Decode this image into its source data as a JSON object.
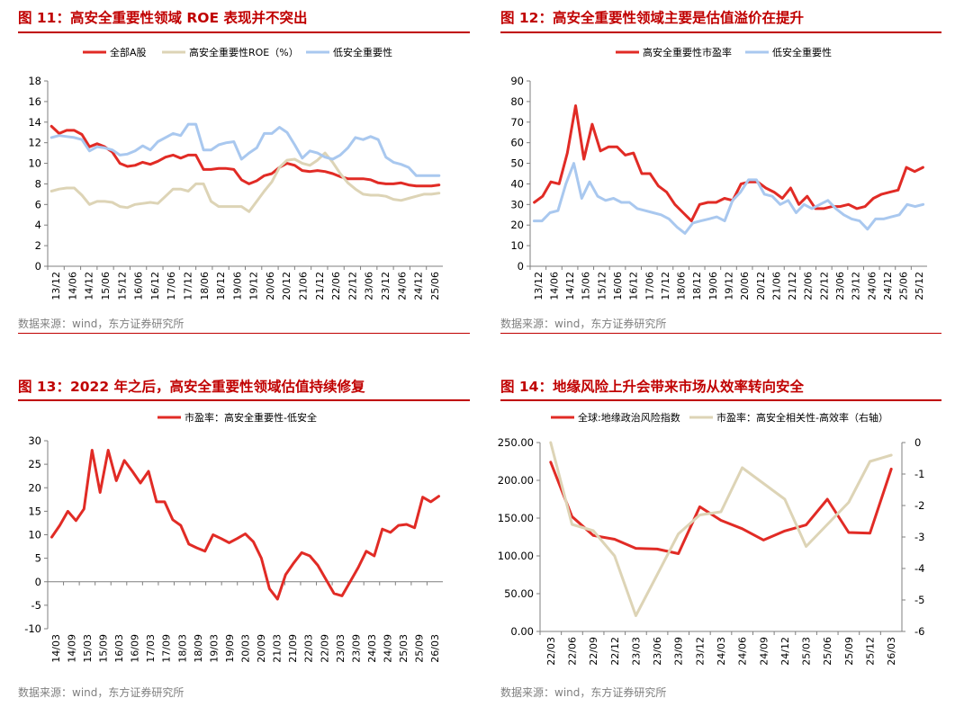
{
  "colors": {
    "red": "#e12b25",
    "beige": "#ddd4b6",
    "blue": "#a9c8ef",
    "title": "#c00000",
    "source": "#7f7f7f"
  },
  "panels": [
    {
      "title": "图 11：高安全重要性领域 ROE 表现并不突出",
      "source": "数据来源：wind，东方证券研究所",
      "chart_data": {
        "type": "line",
        "title": "",
        "xlabel": "",
        "ylabel": "",
        "ylim": [
          0,
          18
        ],
        "yticks": [
          0,
          2,
          4,
          6,
          8,
          10,
          12,
          14,
          16,
          18
        ],
        "ytick_labels": [
          "0",
          "2",
          "4",
          "6",
          "8",
          "10",
          "12",
          "14",
          "16",
          "18"
        ],
        "xticks": [
          "13/12",
          "14/06",
          "14/12",
          "15/06",
          "15/12",
          "16/06",
          "16/12",
          "17/06",
          "17/12",
          "18/06",
          "18/12",
          "19/06",
          "19/12",
          "20/06",
          "20/12",
          "21/06",
          "21/12",
          "22/06",
          "22/12",
          "23/06",
          "23/12",
          "24/06",
          "24/12",
          "25/06"
        ],
        "legend_position": "top",
        "series": [
          {
            "name": "全部A股",
            "color": "red",
            "values": [
              13.6,
              12.9,
              13.2,
              13.2,
              12.8,
              11.6,
              11.9,
              11.6,
              11.1,
              10.0,
              9.7,
              9.8,
              10.1,
              9.9,
              10.2,
              10.6,
              10.8,
              10.5,
              10.8,
              10.8,
              9.4,
              9.4,
              9.5,
              9.5,
              9.4,
              8.4,
              8.0,
              8.3,
              8.8,
              9.0,
              9.6,
              10.0,
              9.8,
              9.3,
              9.2,
              9.3,
              9.2,
              9.0,
              8.7,
              8.5,
              8.5,
              8.5,
              8.4,
              8.1,
              8.0,
              8.0,
              8.1,
              7.9,
              7.8,
              7.8,
              7.8,
              7.9
            ]
          },
          {
            "name": "高安全重要性ROE（%）",
            "color": "beige",
            "values": [
              7.3,
              7.5,
              7.6,
              7.6,
              6.9,
              6.0,
              6.3,
              6.3,
              6.2,
              5.8,
              5.7,
              6.0,
              6.1,
              6.2,
              6.1,
              6.8,
              7.5,
              7.5,
              7.3,
              8.0,
              8.0,
              6.3,
              5.8,
              5.8,
              5.8,
              5.8,
              5.3,
              6.3,
              7.3,
              8.2,
              9.6,
              10.3,
              10.4,
              10.0,
              9.8,
              10.3,
              11.0,
              10.1,
              9.0,
              8.1,
              7.5,
              7.0,
              6.9,
              6.9,
              6.8,
              6.5,
              6.4,
              6.6,
              6.8,
              7.0,
              7.0,
              7.1
            ]
          },
          {
            "name": "低安全重要性",
            "color": "blue",
            "values": [
              12.5,
              12.7,
              12.6,
              12.5,
              12.3,
              11.2,
              11.6,
              11.5,
              11.3,
              10.8,
              10.9,
              11.2,
              11.7,
              11.3,
              12.1,
              12.5,
              12.9,
              12.7,
              13.8,
              13.8,
              11.3,
              11.3,
              11.8,
              12.0,
              12.1,
              10.4,
              11.0,
              11.5,
              12.9,
              12.9,
              13.5,
              13.0,
              11.8,
              10.5,
              11.2,
              11.0,
              10.6,
              10.4,
              10.8,
              11.5,
              12.5,
              12.3,
              12.6,
              12.3,
              10.6,
              10.1,
              9.9,
              9.6,
              8.8,
              8.8,
              8.8,
              8.8
            ]
          }
        ]
      }
    },
    {
      "title": "图 12：高安全重要性领域主要是估值溢价在提升",
      "source": "数据来源：wind，东方证券研究所",
      "chart_data": {
        "type": "line",
        "title": "",
        "xlabel": "",
        "ylabel": "",
        "ylim": [
          0,
          90
        ],
        "yticks": [
          0,
          10,
          20,
          30,
          40,
          50,
          60,
          70,
          80,
          90
        ],
        "ytick_labels": [
          "0",
          "10",
          "20",
          "30",
          "40",
          "50",
          "60",
          "70",
          "80",
          "90"
        ],
        "xticks": [
          "13/12",
          "14/06",
          "14/12",
          "15/06",
          "15/12",
          "16/06",
          "16/12",
          "17/06",
          "17/12",
          "18/06",
          "18/12",
          "19/06",
          "19/12",
          "20/06",
          "20/12",
          "21/06",
          "21/12",
          "22/06",
          "22/12",
          "23/06",
          "23/12",
          "24/06",
          "24/12",
          "25/06",
          "25/12"
        ],
        "legend_position": "top",
        "series": [
          {
            "name": "高安全重要性市盈率",
            "color": "red",
            "values": [
              31,
              34,
              41,
              40,
              55,
              78,
              52,
              69,
              56,
              58,
              58,
              54,
              55,
              45,
              45,
              39,
              36,
              30,
              26,
              22,
              30,
              31,
              31,
              33,
              32,
              40,
              41,
              41,
              38,
              36,
              33,
              38,
              30,
              34,
              28,
              28,
              29,
              29,
              30,
              28,
              29,
              33,
              35,
              36,
              37,
              48,
              46,
              48
            ]
          },
          {
            "name": "低安全重要性",
            "color": "blue",
            "values": [
              22,
              22,
              26,
              27,
              40,
              50,
              33,
              41,
              34,
              32,
              33,
              31,
              31,
              28,
              27,
              26,
              25,
              23,
              19,
              16,
              21,
              22,
              23,
              24,
              22,
              32,
              36,
              42,
              42,
              35,
              34,
              30,
              32,
              26,
              30,
              28,
              30,
              32,
              28,
              25,
              23,
              22,
              18,
              23,
              23,
              24,
              25,
              30,
              29,
              30
            ]
          }
        ]
      }
    },
    {
      "title": "图 13：2022 年之后，高安全重要性领域估值持续修复",
      "source": "数据来源：wind，东方证券研究所",
      "chart_data": {
        "type": "line",
        "title": "",
        "xlabel": "",
        "ylabel": "",
        "ylim": [
          -10,
          30
        ],
        "yticks": [
          -10,
          -5,
          0,
          5,
          10,
          15,
          20,
          25,
          30
        ],
        "ytick_labels": [
          "-10",
          "-5",
          "0",
          "5",
          "10",
          "15",
          "20",
          "25",
          "30"
        ],
        "xticks": [
          "14/03",
          "14/09",
          "15/03",
          "15/09",
          "16/03",
          "16/09",
          "17/03",
          "17/09",
          "18/03",
          "18/09",
          "19/03",
          "19/09",
          "20/03",
          "20/09",
          "21/03",
          "21/09",
          "22/03",
          "22/09",
          "23/03",
          "23/09",
          "24/03",
          "24/09",
          "25/03",
          "25/09",
          "26/03"
        ],
        "legend_position": "top",
        "series": [
          {
            "name": "市盈率：高安全重要性-低安全",
            "color": "red",
            "values": [
              9.5,
              12,
              15,
              13,
              15.5,
              28,
              19,
              28,
              21.5,
              25.8,
              23.5,
              21,
              23.5,
              17,
              17,
              13.2,
              12,
              8,
              7.2,
              6.5,
              10,
              9.2,
              8.3,
              9.2,
              10.2,
              8.5,
              5,
              -1.5,
              -3.7,
              1.5,
              4,
              6.2,
              5.5,
              3.5,
              0.5,
              -2.5,
              -3,
              0,
              3,
              6.5,
              5.5,
              11.2,
              10.5,
              12,
              12.2,
              11.5,
              18,
              17,
              18.2
            ]
          }
        ]
      }
    },
    {
      "title": "图 14：地缘风险上升会带来市场从效率转向安全",
      "source": "数据来源：wind，东方证券研究所",
      "chart_data": {
        "type": "line",
        "title": "",
        "xlabel": "",
        "ylabel": "",
        "y2label": "",
        "ylim": [
          0,
          250
        ],
        "yticks": [
          0,
          50,
          100,
          150,
          200,
          250
        ],
        "ytick_labels": [
          "0.00",
          "50.00",
          "100.00",
          "150.00",
          "200.00",
          "250.00"
        ],
        "y2lim": [
          -6,
          0
        ],
        "y2ticks": [
          -6,
          -5,
          -4,
          -3,
          -2,
          -1,
          0
        ],
        "y2tick_labels": [
          "-6",
          "-5",
          "-4",
          "-3",
          "-2",
          "-1",
          "0"
        ],
        "xticks": [
          "22/03",
          "22/06",
          "22/09",
          "22/12",
          "23/03",
          "23/06",
          "23/09",
          "23/12",
          "24/03",
          "24/06",
          "24/09",
          "24/12",
          "25/03",
          "25/06",
          "25/09",
          "25/12",
          "26/03"
        ],
        "legend_position": "top",
        "series": [
          {
            "name": "全球:地缘政治风险指数",
            "color": "red",
            "axis": "left",
            "values": [
              224,
              152,
              127,
              122,
              110,
              109,
              103,
              165,
              147,
              136,
              121,
              133,
              141,
              175,
              131,
              130,
              215
            ]
          },
          {
            "name": "市盈率：高安全相关性-高效率（右轴）",
            "color": "beige",
            "axis": "right",
            "values": [
              0,
              -2.6,
              -2.8,
              -3.6,
              -5.5,
              -4.2,
              -2.9,
              -2.3,
              -2.2,
              -0.8,
              -1.3,
              -1.8,
              -3.3,
              -2.6,
              -1.9,
              -0.6,
              -0.4
            ]
          }
        ]
      }
    }
  ]
}
